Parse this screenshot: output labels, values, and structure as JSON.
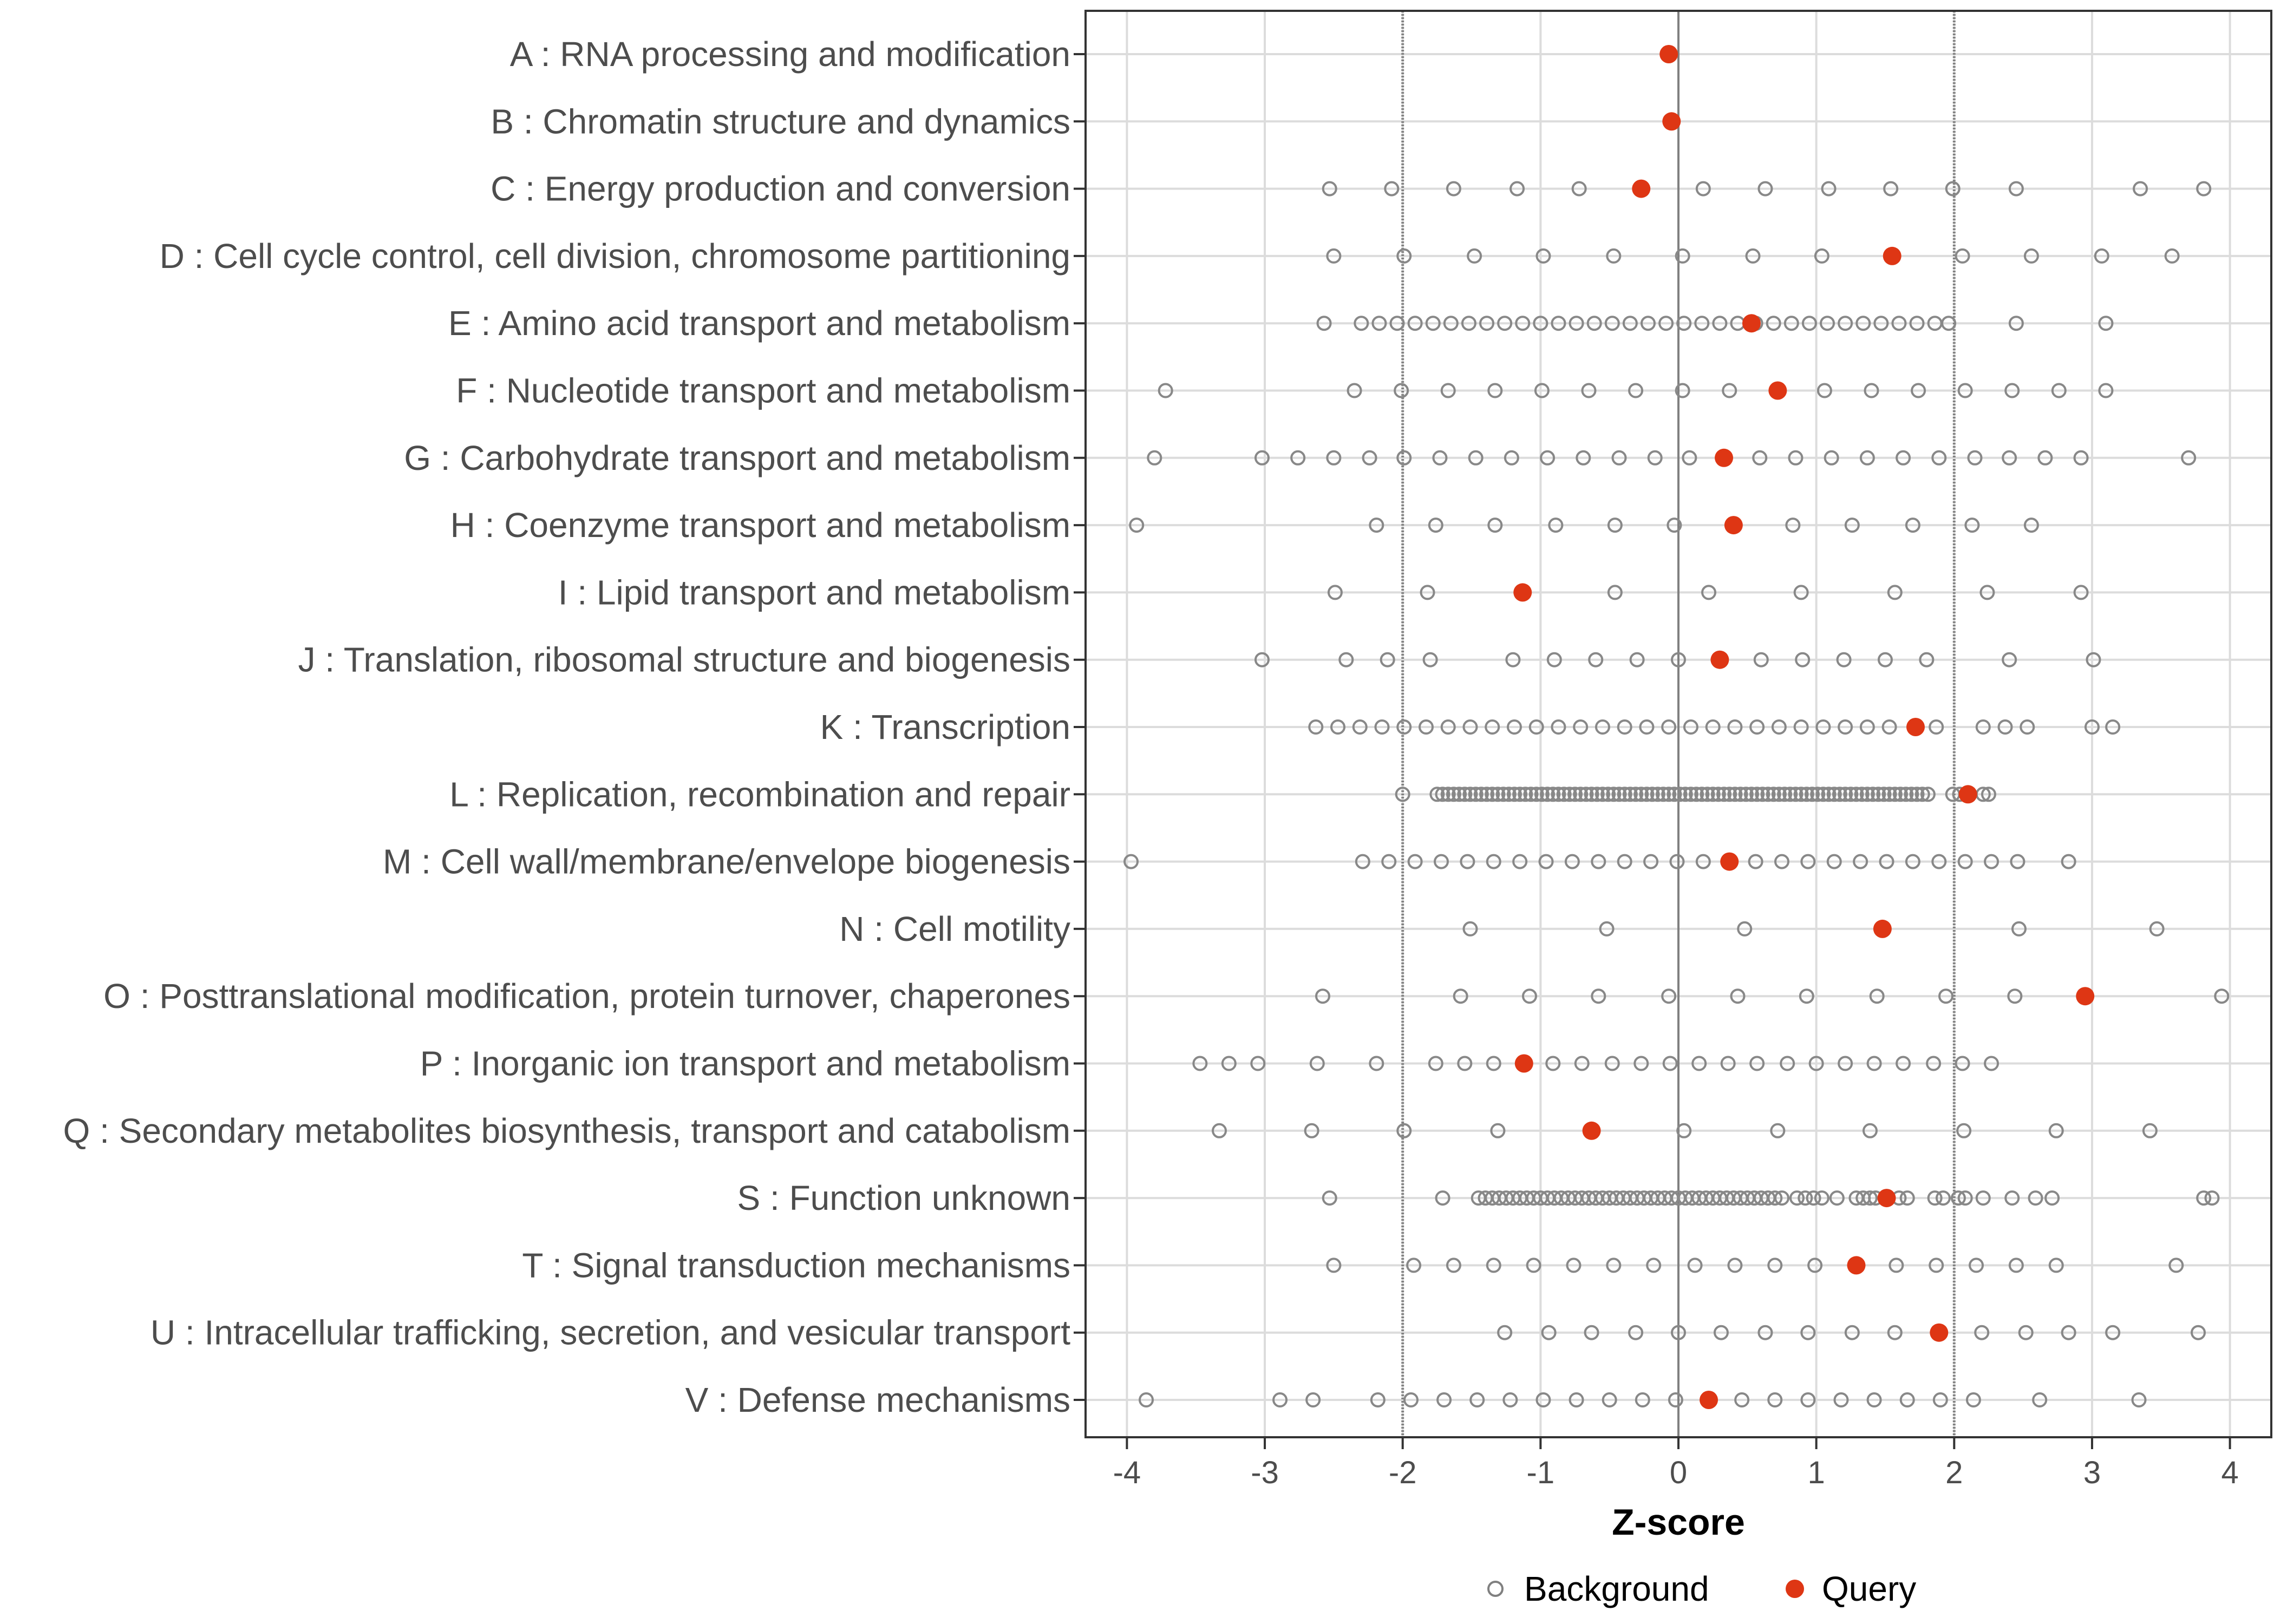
{
  "chart_data": {
    "type": "scatter",
    "title": "",
    "xlabel": "Z-score",
    "ylabel": "",
    "xlim": [
      -4.3,
      4.3
    ],
    "x_ticks": [
      -4,
      -3,
      -2,
      -1,
      0,
      1,
      2,
      3,
      4
    ],
    "x_tick_labels": [
      "-4",
      "-3",
      "-2",
      "-1",
      "0",
      "1",
      "2",
      "3",
      "4"
    ],
    "reference_lines": [
      -2,
      0,
      2
    ],
    "legend": {
      "position": "bottom",
      "entries": [
        {
          "name": "Background",
          "marker": "open-circle",
          "color": "#808080"
        },
        {
          "name": "Query",
          "marker": "filled-circle",
          "color": "#de3614"
        }
      ]
    },
    "categories": [
      "A : RNA processing and modification",
      "B : Chromatin structure and dynamics",
      "C : Energy production and conversion",
      "D : Cell cycle control, cell division, chromosome partitioning",
      "E : Amino acid transport and metabolism",
      "F : Nucleotide transport and metabolism",
      "G : Carbohydrate transport and metabolism",
      "H : Coenzyme transport and metabolism",
      "I : Lipid transport and metabolism",
      "J : Translation, ribosomal structure and biogenesis",
      "K : Transcription",
      "L : Replication, recombination and repair",
      "M : Cell wall/membrane/envelope biogenesis",
      "N : Cell motility",
      "O : Posttranslational modification, protein turnover, chaperones",
      "P : Inorganic ion transport and metabolism",
      "Q : Secondary metabolites biosynthesis, transport and catabolism",
      "S : Function unknown",
      "T : Signal transduction mechanisms",
      "U : Intracellular trafficking, secretion, and vesicular transport",
      "V : Defense mechanisms"
    ],
    "series": [
      {
        "name": "Query",
        "values": [
          -0.07,
          -0.05,
          -0.27,
          1.55,
          0.53,
          0.72,
          0.33,
          0.4,
          -1.13,
          0.3,
          1.72,
          2.1,
          0.37,
          1.48,
          2.95,
          -1.12,
          -0.63,
          1.51,
          1.29,
          1.89,
          0.22
        ]
      },
      {
        "name": "Background",
        "values": [
          [],
          [],
          [
            -2.53,
            -2.08,
            -1.63,
            -1.17,
            -0.72,
            -0.27,
            0.18,
            0.63,
            1.09,
            1.54,
            1.99,
            2.45,
            3.35,
            3.81
          ],
          [
            -2.5,
            -1.99,
            -1.48,
            -0.98,
            -0.47,
            0.03,
            0.54,
            1.04,
            1.55,
            2.06,
            2.56,
            3.07,
            3.58
          ],
          [
            -2.57,
            -2.3,
            -2.17,
            -2.04,
            -1.91,
            -1.78,
            -1.65,
            -1.52,
            -1.39,
            -1.26,
            -1.13,
            -1.0,
            -0.87,
            -0.74,
            -0.61,
            -0.48,
            -0.35,
            -0.22,
            -0.09,
            0.04,
            0.17,
            0.3,
            0.43,
            0.56,
            0.69,
            0.82,
            0.95,
            1.08,
            1.21,
            1.34,
            1.47,
            1.6,
            1.73,
            1.86,
            1.96,
            2.45,
            3.1
          ],
          [
            -3.72,
            -2.35,
            -2.01,
            -1.67,
            -1.33,
            -0.99,
            -0.65,
            -0.31,
            0.03,
            0.37,
            0.72,
            1.06,
            1.4,
            1.74,
            2.08,
            2.42,
            2.76,
            3.1
          ],
          [
            -3.8,
            -3.02,
            -2.76,
            -2.5,
            -2.24,
            -1.99,
            -1.73,
            -1.47,
            -1.21,
            -0.95,
            -0.69,
            -0.43,
            -0.17,
            0.08,
            0.33,
            0.59,
            0.85,
            1.11,
            1.37,
            1.63,
            1.89,
            2.15,
            2.4,
            2.66,
            2.92,
            3.7
          ],
          [
            -3.93,
            -2.19,
            -1.76,
            -1.33,
            -0.89,
            -0.46,
            -0.03,
            0.4,
            0.83,
            1.26,
            1.7,
            2.13,
            2.56
          ],
          [
            -2.49,
            -1.82,
            -1.13,
            -0.46,
            0.22,
            0.89,
            1.57,
            2.24,
            2.92
          ],
          [
            -3.02,
            -2.41,
            -2.11,
            -1.8,
            -1.2,
            -0.9,
            -0.6,
            -0.3,
            0.0,
            0.3,
            0.6,
            0.9,
            1.2,
            1.5,
            1.8,
            2.4,
            3.01
          ],
          [
            -2.63,
            -2.47,
            -2.31,
            -2.15,
            -1.99,
            -1.83,
            -1.67,
            -1.51,
            -1.35,
            -1.19,
            -1.03,
            -0.87,
            -0.71,
            -0.55,
            -0.39,
            -0.23,
            -0.07,
            0.09,
            0.25,
            0.41,
            0.57,
            0.73,
            0.89,
            1.05,
            1.21,
            1.37,
            1.53,
            1.72,
            1.87,
            2.21,
            2.37,
            2.53,
            3.0,
            3.15
          ],
          [
            -2.0,
            -1.75,
            -1.71,
            -1.67,
            -1.63,
            -1.59,
            -1.55,
            -1.51,
            -1.47,
            -1.43,
            -1.39,
            -1.35,
            -1.31,
            -1.27,
            -1.23,
            -1.19,
            -1.15,
            -1.11,
            -1.07,
            -1.03,
            -0.99,
            -0.95,
            -0.91,
            -0.87,
            -0.83,
            -0.79,
            -0.75,
            -0.71,
            -0.67,
            -0.63,
            -0.59,
            -0.55,
            -0.51,
            -0.47,
            -0.43,
            -0.39,
            -0.35,
            -0.31,
            -0.27,
            -0.23,
            -0.19,
            -0.15,
            -0.11,
            -0.07,
            -0.03,
            0.01,
            0.05,
            0.09,
            0.13,
            0.17,
            0.21,
            0.25,
            0.29,
            0.33,
            0.37,
            0.41,
            0.45,
            0.49,
            0.53,
            0.57,
            0.61,
            0.65,
            0.69,
            0.73,
            0.77,
            0.81,
            0.85,
            0.89,
            0.93,
            0.97,
            1.01,
            1.05,
            1.09,
            1.13,
            1.17,
            1.21,
            1.25,
            1.29,
            1.33,
            1.37,
            1.41,
            1.45,
            1.49,
            1.53,
            1.57,
            1.61,
            1.65,
            1.69,
            1.73,
            1.77,
            1.81,
            1.99,
            2.04,
            2.21,
            2.25
          ],
          [
            -3.97,
            -2.29,
            -2.1,
            -1.91,
            -1.72,
            -1.53,
            -1.34,
            -1.15,
            -0.96,
            -0.77,
            -0.58,
            -0.39,
            -0.2,
            -0.01,
            0.18,
            0.37,
            0.56,
            0.75,
            0.94,
            1.13,
            1.32,
            1.51,
            1.7,
            1.89,
            2.08,
            2.27,
            2.46,
            2.83
          ],
          [
            -1.51,
            -0.52,
            0.48,
            1.48,
            2.47,
            3.47
          ],
          [
            -2.58,
            -1.58,
            -1.08,
            -0.58,
            -0.07,
            0.43,
            0.93,
            1.44,
            1.94,
            2.44,
            3.94
          ],
          [
            -3.47,
            -3.26,
            -3.05,
            -2.62,
            -2.19,
            -1.76,
            -1.55,
            -1.34,
            -1.12,
            -0.91,
            -0.7,
            -0.48,
            -0.27,
            -0.06,
            0.15,
            0.36,
            0.57,
            0.79,
            1.0,
            1.21,
            1.42,
            1.63,
            1.85,
            2.06,
            2.27
          ],
          [
            -3.33,
            -2.66,
            -1.99,
            -1.31,
            -0.63,
            0.04,
            0.72,
            1.39,
            2.07,
            2.74,
            3.42
          ],
          [
            -2.53,
            -1.71,
            -1.45,
            -1.4,
            -1.35,
            -1.3,
            -1.25,
            -1.2,
            -1.15,
            -1.1,
            -1.05,
            -1.0,
            -0.95,
            -0.9,
            -0.85,
            -0.8,
            -0.75,
            -0.7,
            -0.65,
            -0.6,
            -0.55,
            -0.5,
            -0.45,
            -0.4,
            -0.35,
            -0.3,
            -0.25,
            -0.2,
            -0.15,
            -0.1,
            -0.05,
            0.0,
            0.05,
            0.1,
            0.15,
            0.2,
            0.25,
            0.3,
            0.35,
            0.4,
            0.45,
            0.5,
            0.55,
            0.6,
            0.65,
            0.7,
            0.75,
            0.86,
            0.92,
            0.98,
            1.04,
            1.15,
            1.29,
            1.34,
            1.39,
            1.43,
            1.6,
            1.66,
            1.86,
            1.92,
            2.03,
            2.08,
            2.21,
            2.42,
            2.59,
            2.71,
            3.81,
            3.87
          ],
          [
            -2.5,
            -1.92,
            -1.63,
            -1.34,
            -1.05,
            -0.76,
            -0.47,
            -0.18,
            0.12,
            0.41,
            0.7,
            0.99,
            1.29,
            1.58,
            1.87,
            2.16,
            2.45,
            2.74,
            3.61
          ],
          [
            -1.26,
            -0.94,
            -0.63,
            -0.31,
            0.0,
            0.31,
            0.63,
            0.94,
            1.26,
            1.57,
            1.89,
            2.2,
            2.52,
            2.83,
            3.15,
            3.77
          ],
          [
            -3.86,
            -2.89,
            -2.65,
            -2.18,
            -1.94,
            -1.7,
            -1.46,
            -1.22,
            -0.98,
            -0.74,
            -0.5,
            -0.26,
            -0.02,
            0.22,
            0.46,
            0.7,
            0.94,
            1.18,
            1.42,
            1.66,
            1.9,
            2.14,
            2.62,
            3.34
          ]
        ]
      }
    ]
  }
}
